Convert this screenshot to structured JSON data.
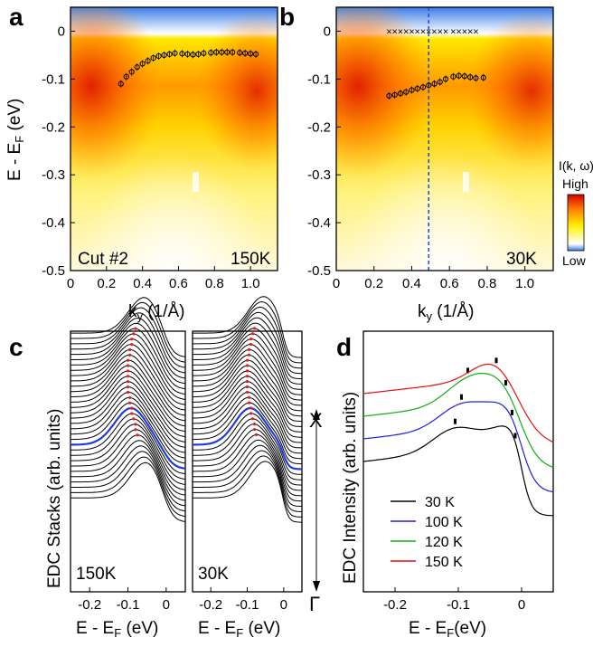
{
  "panel_labels": {
    "a": "a",
    "b": "b",
    "c": "c",
    "d": "d"
  },
  "colorbar": {
    "title": "I(k, ω)",
    "high": "High",
    "low": "Low"
  },
  "chart_data": [
    {
      "id": "a",
      "type": "heatmap",
      "xlabel": "k_y (1/Å)",
      "ylabel": "E - E_F (eV)",
      "xlim": [
        0,
        1.15
      ],
      "ylim": [
        -0.5,
        0.05
      ],
      "xticks": [
        "0",
        "0.2",
        "0.4",
        "0.6",
        "0.8",
        "1.0"
      ],
      "yticks": [
        "0",
        "-0.1",
        "-0.2",
        "-0.3",
        "-0.4",
        "-0.5"
      ],
      "annotations": [
        "Cut #2",
        "150K"
      ],
      "markers": {
        "style": "circle-errorbar",
        "x": [
          0.28,
          0.31,
          0.34,
          0.37,
          0.4,
          0.43,
          0.46,
          0.49,
          0.52,
          0.55,
          0.58,
          0.62,
          0.65,
          0.68,
          0.71,
          0.74,
          0.78,
          0.81,
          0.84,
          0.87,
          0.9,
          0.94,
          0.97,
          1.0,
          1.03
        ],
        "y": [
          -0.11,
          -0.095,
          -0.085,
          -0.075,
          -0.068,
          -0.062,
          -0.056,
          -0.052,
          -0.05,
          -0.048,
          -0.046,
          -0.047,
          -0.048,
          -0.049,
          -0.048,
          -0.046,
          -0.045,
          -0.044,
          -0.044,
          -0.044,
          -0.044,
          -0.045,
          -0.046,
          -0.047,
          -0.048
        ]
      }
    },
    {
      "id": "b",
      "type": "heatmap",
      "xlabel": "k_y (1/Å)",
      "ylabel": "",
      "xlim": [
        0,
        1.15
      ],
      "ylim": [
        -0.5,
        0.05
      ],
      "xticks": [
        "0",
        "0.2",
        "0.4",
        "0.6",
        "0.8",
        "1.0"
      ],
      "yticks": [
        "0",
        "-0.1",
        "-0.2",
        "-0.3",
        "-0.4",
        "-0.5"
      ],
      "annotations": [
        "30K"
      ],
      "dashed_line_x": 0.49,
      "markers_cross": {
        "x": [
          0.28,
          0.31,
          0.34,
          0.37,
          0.4,
          0.43,
          0.46,
          0.49,
          0.52,
          0.55,
          0.58,
          0.62,
          0.65,
          0.68,
          0.71,
          0.74
        ],
        "y": [
          0,
          0,
          0,
          0,
          0,
          0,
          0,
          0,
          0,
          0,
          0,
          0,
          0,
          0,
          0,
          0
        ]
      },
      "markers": {
        "style": "circle-errorbar",
        "x": [
          0.28,
          0.31,
          0.34,
          0.37,
          0.4,
          0.43,
          0.46,
          0.49,
          0.52,
          0.55,
          0.58,
          0.62,
          0.65,
          0.68,
          0.71,
          0.74,
          0.78
        ],
        "y": [
          -0.135,
          -0.133,
          -0.13,
          -0.127,
          -0.123,
          -0.12,
          -0.117,
          -0.113,
          -0.11,
          -0.106,
          -0.1,
          -0.095,
          -0.093,
          -0.094,
          -0.096,
          -0.098,
          -0.097
        ]
      }
    },
    {
      "id": "c",
      "type": "line",
      "ylabel": "EDC Stacks (arb. units)",
      "xlabel": "E - E_F (eV)",
      "xlim": [
        -0.25,
        0.05
      ],
      "xticks": [
        "-0.2",
        "-0.1",
        "0"
      ],
      "panels": [
        {
          "annotation": "150K",
          "n_curves": 32,
          "highlighted_index": 10
        },
        {
          "annotation": "30K",
          "n_curves": 32,
          "highlighted_index": 10
        }
      ],
      "arrow_labels": {
        "top": "X",
        "bottom": "Γ"
      }
    },
    {
      "id": "d",
      "type": "line",
      "ylabel": "EDC Intensity (arb. units)",
      "xlabel": "E - E_F(eV)",
      "xlim": [
        -0.25,
        0.05
      ],
      "xticks": [
        "-0.2",
        "-0.1",
        "0"
      ],
      "series": [
        {
          "name": "30 K",
          "color": "#000000",
          "peaks": [
            -0.105,
            -0.01
          ]
        },
        {
          "name": "100 K",
          "color": "#1f1fe0",
          "peaks": [
            -0.095,
            -0.015
          ]
        },
        {
          "name": "120 K",
          "color": "#10b010",
          "peaks": [
            -0.085,
            -0.025
          ]
        },
        {
          "name": "150 K",
          "color": "#e01010",
          "peaks": [
            -0.04
          ]
        }
      ]
    }
  ]
}
